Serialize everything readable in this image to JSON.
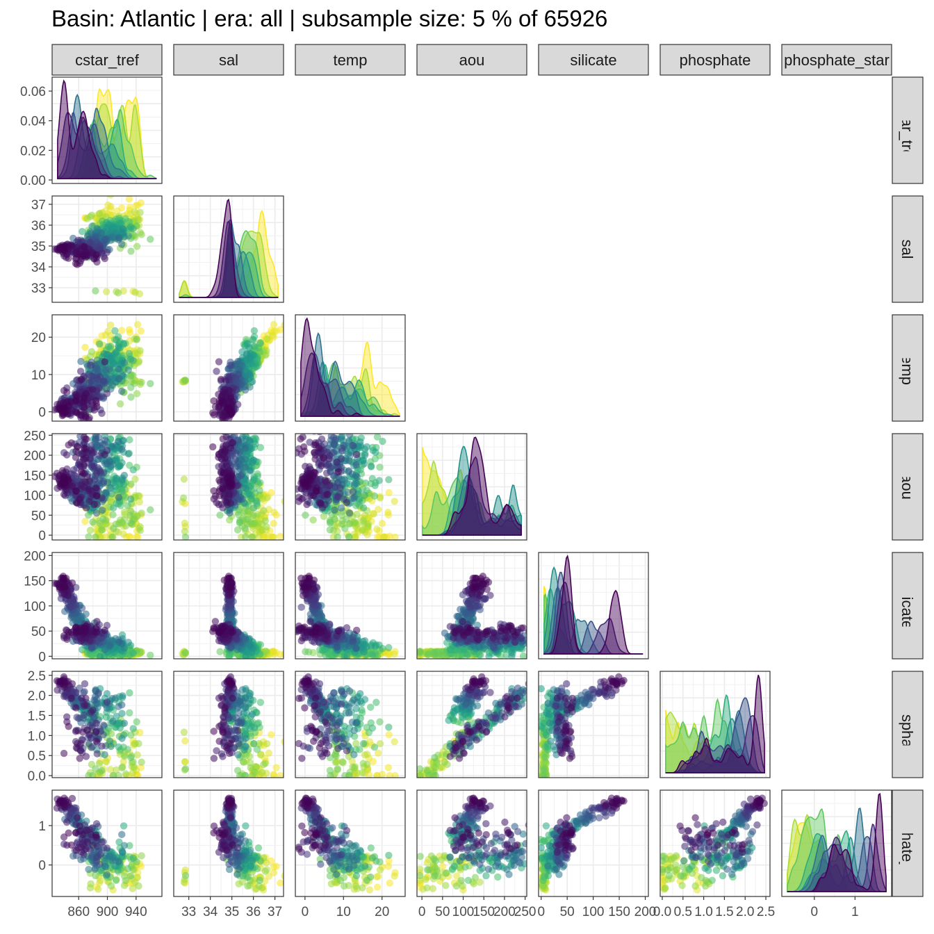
{
  "title": "Basin: Atlantic | era: all | subsample size: 5 % of 65926",
  "chart_data": {
    "type": "scatter-matrix",
    "variables": [
      "cstar_tref",
      "sal",
      "temp",
      "aou",
      "silicate",
      "phosphate",
      "phosphate_star"
    ],
    "strip_labels": [
      "cstar_tref",
      "sal",
      "temp",
      "aou",
      "silicate",
      "phosphate",
      "phosphate_star"
    ],
    "color_scale": "viridis",
    "palette": [
      "#440154",
      "#46337e",
      "#365c8d",
      "#277f8e",
      "#1fa187",
      "#4ac16d",
      "#9fda3a",
      "#fde725"
    ],
    "grid": true,
    "diagonal": "density by depth layer",
    "lower": "scatter",
    "x_ticks": {
      "cstar_tref": [
        {
          "v": 860,
          "label": "860"
        },
        {
          "v": 900,
          "label": "900"
        },
        {
          "v": 940,
          "label": "940"
        }
      ],
      "sal": [
        {
          "v": 33,
          "label": "33"
        },
        {
          "v": 34,
          "label": "34"
        },
        {
          "v": 35,
          "label": "35"
        },
        {
          "v": 36,
          "label": "36"
        },
        {
          "v": 37,
          "label": "37"
        }
      ],
      "temp": [
        {
          "v": 0,
          "label": "0"
        },
        {
          "v": 10,
          "label": "10"
        },
        {
          "v": 20,
          "label": "20"
        }
      ],
      "aou": [
        {
          "v": 0,
          "label": "0"
        },
        {
          "v": 50,
          "label": "50"
        },
        {
          "v": 100,
          "label": "100"
        },
        {
          "v": 150,
          "label": "150"
        },
        {
          "v": 200,
          "label": "200"
        },
        {
          "v": 250,
          "label": "250"
        }
      ],
      "silicate": [
        {
          "v": 0,
          "label": "0"
        },
        {
          "v": 50,
          "label": "50"
        },
        {
          "v": 100,
          "label": "100"
        },
        {
          "v": 150,
          "label": "150"
        },
        {
          "v": 200,
          "label": "200"
        }
      ],
      "phosphate": [
        {
          "v": 0,
          "label": "0.0"
        },
        {
          "v": 0.5,
          "label": "0.5"
        },
        {
          "v": 1,
          "label": "1.0"
        },
        {
          "v": 1.5,
          "label": "1.5"
        },
        {
          "v": 2,
          "label": "2.0"
        },
        {
          "v": 2.5,
          "label": "2.5"
        }
      ],
      "phosphate_star": [
        {
          "v": 0,
          "label": "0"
        },
        {
          "v": 1,
          "label": "1"
        }
      ]
    },
    "y_ticks": {
      "cstar_tref": [
        {
          "v": 0,
          "label": "0.00"
        },
        {
          "v": 0.02,
          "label": "0.02"
        },
        {
          "v": 0.04,
          "label": "0.04"
        },
        {
          "v": 0.06,
          "label": "0.06"
        }
      ],
      "sal": [
        {
          "v": 33,
          "label": "33"
        },
        {
          "v": 34,
          "label": "34"
        },
        {
          "v": 35,
          "label": "35"
        },
        {
          "v": 36,
          "label": "36"
        },
        {
          "v": 37,
          "label": "37"
        }
      ],
      "temp": [
        {
          "v": 0,
          "label": "0"
        },
        {
          "v": 10,
          "label": "10"
        },
        {
          "v": 20,
          "label": "20"
        }
      ],
      "aou": [
        {
          "v": 0,
          "label": "0"
        },
        {
          "v": 50,
          "label": "50"
        },
        {
          "v": 100,
          "label": "100"
        },
        {
          "v": 150,
          "label": "150"
        },
        {
          "v": 200,
          "label": "200"
        },
        {
          "v": 250,
          "label": "250"
        }
      ],
      "silicate": [
        {
          "v": 0,
          "label": "0"
        },
        {
          "v": 50,
          "label": "50"
        },
        {
          "v": 100,
          "label": "100"
        },
        {
          "v": 150,
          "label": "150"
        },
        {
          "v": 200,
          "label": "200"
        }
      ],
      "phosphate": [
        {
          "v": 0,
          "label": "0.0"
        },
        {
          "v": 0.5,
          "label": "0.5"
        },
        {
          "v": 1,
          "label": "1.0"
        },
        {
          "v": 1.5,
          "label": "1.5"
        },
        {
          "v": 2,
          "label": "2.0"
        },
        {
          "v": 2.5,
          "label": "2.5"
        }
      ],
      "phosphate_star": [
        {
          "v": 0,
          "label": "0"
        },
        {
          "v": 1,
          "label": "1"
        }
      ]
    },
    "ranges": {
      "cstar_tref": [
        823,
        976
      ],
      "sal": [
        32.3,
        37.4
      ],
      "temp": [
        -2.5,
        26
      ],
      "aou": [
        -12,
        254
      ],
      "silicate": [
        -5,
        206
      ],
      "phosphate": [
        -0.05,
        2.6
      ],
      "phosphate_star": [
        -0.8,
        1.9
      ]
    },
    "density_y_range": [
      0,
      0.068
    ]
  }
}
